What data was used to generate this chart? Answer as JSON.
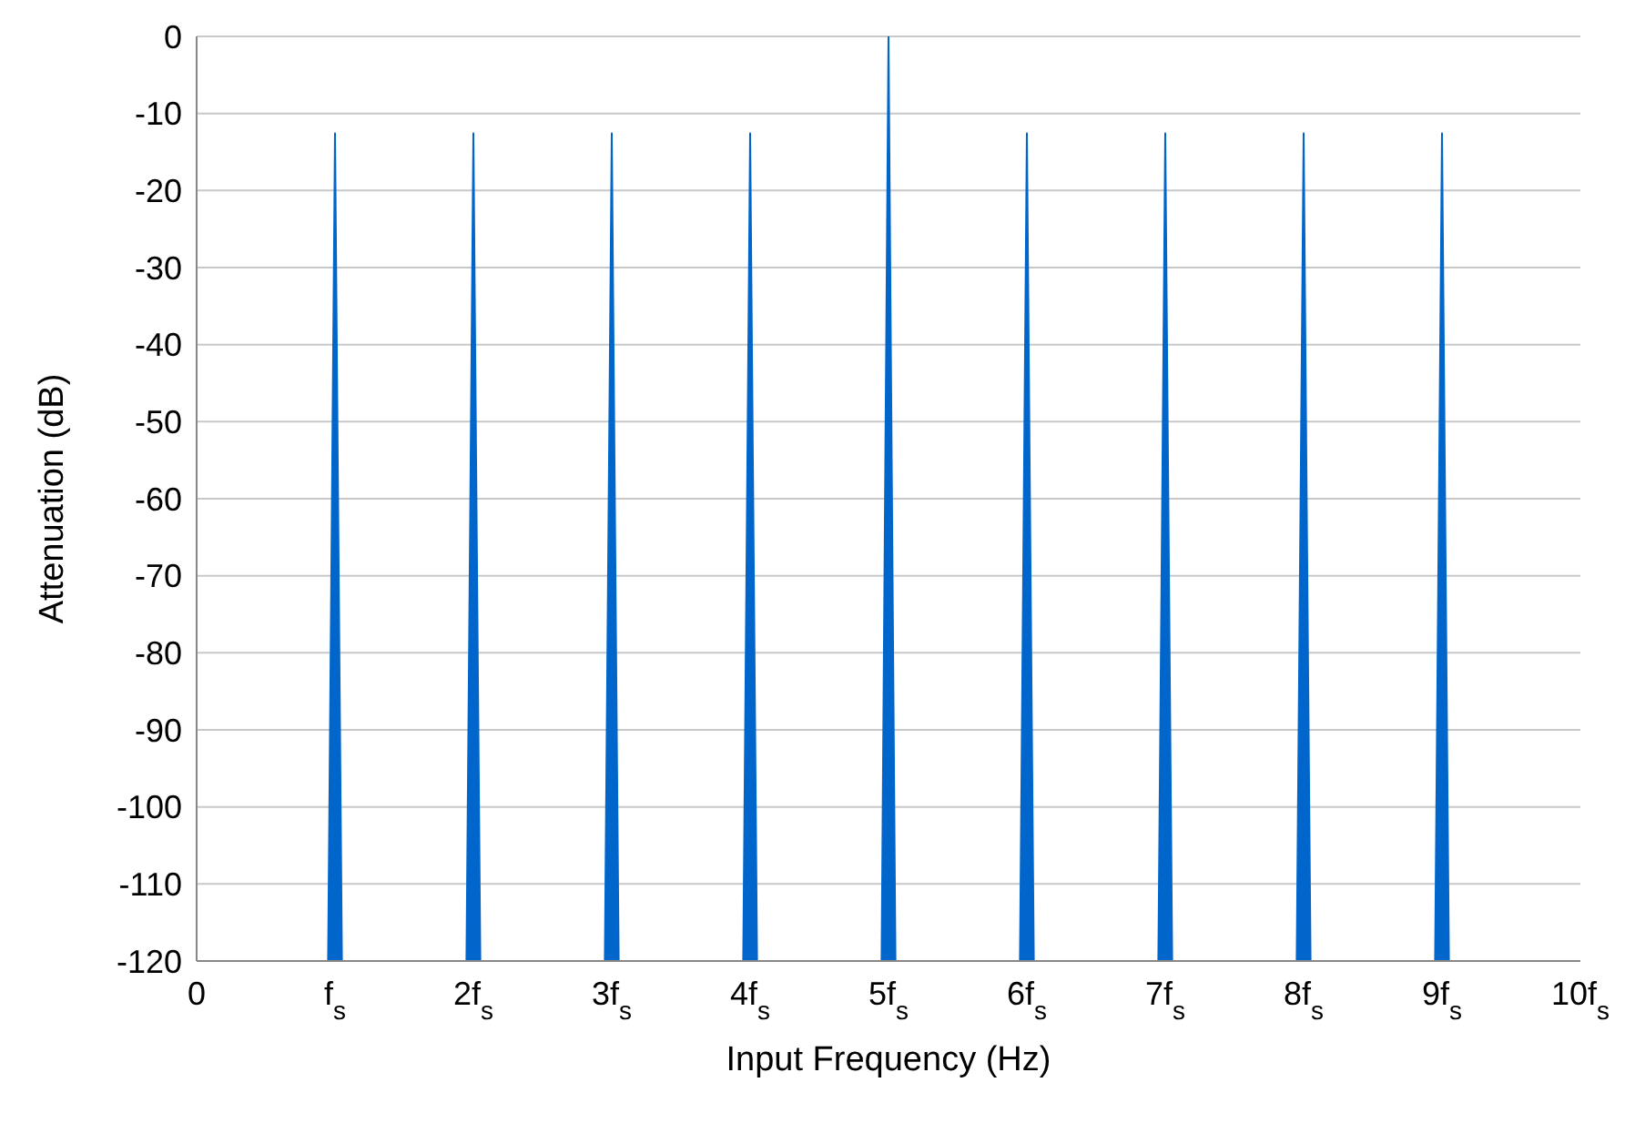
{
  "chart_data": {
    "type": "area",
    "xlabel": "Input Frequency (Hz)",
    "ylabel": "Attenuation (dB)",
    "x": [
      0,
      0.95,
      1,
      1.05,
      1.95,
      2,
      2.05,
      2.95,
      3,
      3.05,
      3.95,
      4,
      4.05,
      4.95,
      5,
      5.05,
      5.95,
      6,
      6.05,
      6.95,
      7,
      7.05,
      7.95,
      8,
      8.05,
      8.95,
      9,
      9.05,
      10
    ],
    "series": [
      {
        "color": "#0066cc",
        "values": [
          -120,
          -120,
          -12.5,
          -120,
          -120,
          -12.5,
          -120,
          -120,
          -12.5,
          -120,
          -120,
          -12.5,
          -120,
          -120,
          0,
          -120,
          -120,
          -12.5,
          -120,
          -120,
          -12.5,
          -120,
          -120,
          -12.5,
          -120,
          -120,
          -12.5,
          -120,
          -120
        ]
      }
    ],
    "xlim": [
      0,
      10
    ],
    "xticks": [
      0,
      {
        "value": 1,
        "label": "f$_{s}$"
      },
      {
        "value": 2,
        "label": "2f$_{s}$"
      },
      {
        "value": 3,
        "label": "3f$_{s}$"
      },
      {
        "value": 4,
        "label": "4f$_{s}$"
      },
      {
        "value": 5,
        "label": "5f$_{s}$"
      },
      {
        "value": 6,
        "label": "6f$_{s}$"
      },
      {
        "value": 7,
        "label": "7f$_{s}$"
      },
      {
        "value": 8,
        "label": "8f$_{s}$"
      },
      {
        "value": 9,
        "label": "9f$_{s}$"
      },
      {
        "value": 10,
        "label": "10f$_{s}$"
      }
    ],
    "ylim": [
      -120,
      0
    ],
    "yticks": [
      0,
      -10,
      -20,
      -30,
      -40,
      -50,
      -60,
      -70,
      -80,
      -90,
      -100,
      -110,
      -120
    ],
    "grid": "y"
  }
}
